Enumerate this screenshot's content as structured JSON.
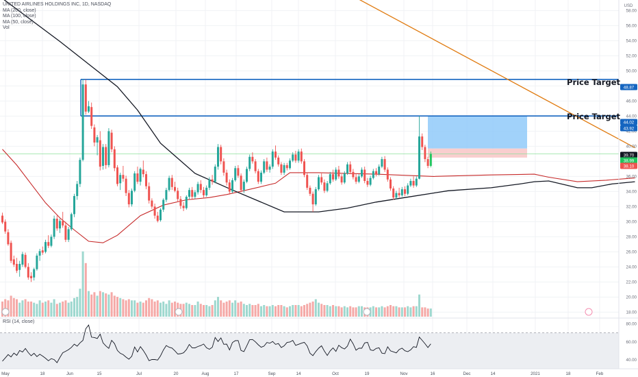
{
  "header": {
    "symbol": "UNITED AIRLINES HOLDINGS INC, 1D, NASDAQ",
    "indicators": [
      "MA (200, close)",
      "MA (100, close)",
      "MA (50, close)",
      "Vol"
    ],
    "rsi_label": "RSI (14, close)"
  },
  "annotations": [
    {
      "text": "Price Target",
      "level": 48.87
    },
    {
      "text": "Price Target",
      "level": 44.02
    }
  ],
  "colors": {
    "up": "#26a69a",
    "down": "#ef5350",
    "up_bright": "#22c55e",
    "ma200": "#e07b10",
    "ma100": "#c62828",
    "ma50": "#131722",
    "target_line": "#1565c0",
    "zone_profit": "#90caf9",
    "zone_loss": "#f8c9c9",
    "rsi": "#131722",
    "rsi_band": "#eceef2"
  },
  "chart_data": {
    "type": "candlestick",
    "currency": "USD",
    "y_ticks": [
      58.0,
      56.0,
      54.0,
      52.0,
      50.0,
      48.0,
      46.0,
      44.0,
      42.0,
      40.0,
      38.0,
      36.0,
      34.0,
      32.0,
      30.0,
      28.0,
      26.0,
      24.0,
      22.0,
      20.0,
      18.0
    ],
    "y_tick_labels": [
      "58.00",
      "56.00",
      "54.00",
      "52.00",
      "50.00",
      "48.00",
      "46.00",
      "44.00",
      "42.00",
      "40.00",
      "38.00",
      "36.00",
      "34.00",
      "32.00",
      "30.00",
      "28.00",
      "26.00",
      "24.00",
      "22.00",
      "20.00",
      "18.00"
    ],
    "ylim": [
      17.4,
      59.4
    ],
    "x_tick_labels": [
      "May",
      "18",
      "Jun",
      "15",
      "Jul",
      "20",
      "Aug",
      "17",
      "Sep",
      "14",
      "Oct",
      "19",
      "Nov",
      "16",
      "Dec",
      "14",
      "2021",
      "18",
      "Feb"
    ],
    "price_badges": [
      {
        "label": "48.87",
        "value": 48.87,
        "style": "blue"
      },
      {
        "label": "44.02",
        "value": 44.02,
        "style": "blue"
      },
      {
        "label": "43.92",
        "value": 43.92,
        "style": "blue"
      },
      {
        "label": "39.70",
        "value": 39.7,
        "style": "dark"
      },
      {
        "label": "38.99",
        "value": 38.99,
        "style": "green"
      },
      {
        "label": "38.10",
        "value": 38.1,
        "style": "red"
      }
    ],
    "position_zone": {
      "entry": 39.7,
      "target": 44.02,
      "stop": 38.5
    },
    "current_price": 38.99,
    "ohlc": [
      [
        30.8,
        31.2,
        29.7,
        29.9
      ],
      [
        30.0,
        30.3,
        28.4,
        28.7
      ],
      [
        28.6,
        29.0,
        26.8,
        27.0
      ],
      [
        27.2,
        27.5,
        24.5,
        24.8
      ],
      [
        25.0,
        25.5,
        24.0,
        24.3
      ],
      [
        24.4,
        25.2,
        23.2,
        23.5
      ],
      [
        23.6,
        24.8,
        22.7,
        24.4
      ],
      [
        24.3,
        26.0,
        24.0,
        25.7
      ],
      [
        25.6,
        25.9,
        23.8,
        24.0
      ],
      [
        24.0,
        24.5,
        22.3,
        22.6
      ],
      [
        22.8,
        23.3,
        22.0,
        22.5
      ],
      [
        22.6,
        23.9,
        22.2,
        23.7
      ],
      [
        23.7,
        25.8,
        23.5,
        25.5
      ],
      [
        25.5,
        26.4,
        24.8,
        26.1
      ],
      [
        26.2,
        26.7,
        25.6,
        25.9
      ],
      [
        26.0,
        27.6,
        25.8,
        27.3
      ],
      [
        27.3,
        28.2,
        26.5,
        26.8
      ],
      [
        26.8,
        28.3,
        26.6,
        28.0
      ],
      [
        28.0,
        30.8,
        27.7,
        30.4
      ],
      [
        30.4,
        30.8,
        28.8,
        29.1
      ],
      [
        29.1,
        30.4,
        28.5,
        30.1
      ],
      [
        30.1,
        31.3,
        29.2,
        29.5
      ],
      [
        29.5,
        30.0,
        27.3,
        27.6
      ],
      [
        27.6,
        29.3,
        27.3,
        29.0
      ],
      [
        29.0,
        31.2,
        28.8,
        31.0
      ],
      [
        31.0,
        33.7,
        30.6,
        33.4
      ],
      [
        33.4,
        35.4,
        32.9,
        35.0
      ],
      [
        35.0,
        38.5,
        34.6,
        38.2
      ],
      [
        38.2,
        48.9,
        38.0,
        48.2
      ],
      [
        48.2,
        48.87,
        44.2,
        44.6
      ],
      [
        44.6,
        46.0,
        44.4,
        45.3
      ],
      [
        45.2,
        45.8,
        42.3,
        42.7
      ],
      [
        42.5,
        42.9,
        40.0,
        40.5
      ],
      [
        40.5,
        41.5,
        38.8,
        41.2
      ],
      [
        40.8,
        42.0,
        36.8,
        37.3
      ],
      [
        37.4,
        40.3,
        36.9,
        39.9
      ],
      [
        39.9,
        40.3,
        37.0,
        37.5
      ],
      [
        37.5,
        42.4,
        37.2,
        42.0
      ],
      [
        41.8,
        42.2,
        39.2,
        39.6
      ],
      [
        39.6,
        40.0,
        36.7,
        37.1
      ],
      [
        37.2,
        37.5,
        34.7,
        35.0
      ],
      [
        35.1,
        36.5,
        34.2,
        36.2
      ],
      [
        36.2,
        37.4,
        35.3,
        35.7
      ],
      [
        35.7,
        36.1,
        33.4,
        33.8
      ],
      [
        33.8,
        34.2,
        31.9,
        32.3
      ],
      [
        32.3,
        34.4,
        32.0,
        34.1
      ],
      [
        34.1,
        36.7,
        33.9,
        36.4
      ],
      [
        36.4,
        37.3,
        35.0,
        35.3
      ],
      [
        35.3,
        37.2,
        34.8,
        37.0
      ],
      [
        36.9,
        38.1,
        35.9,
        36.3
      ],
      [
        36.3,
        36.7,
        34.3,
        34.7
      ],
      [
        34.7,
        35.2,
        32.4,
        32.8
      ],
      [
        32.8,
        33.1,
        31.7,
        32.0
      ],
      [
        32.0,
        32.4,
        30.4,
        30.8
      ],
      [
        30.8,
        31.3,
        29.9,
        30.1
      ],
      [
        30.2,
        31.8,
        30.0,
        31.6
      ],
      [
        31.6,
        33.1,
        31.3,
        32.9
      ],
      [
        32.9,
        34.5,
        32.6,
        34.2
      ],
      [
        34.2,
        36.1,
        34.0,
        35.8
      ],
      [
        35.8,
        36.2,
        34.2,
        34.6
      ],
      [
        34.6,
        35.3,
        33.9,
        34.1
      ],
      [
        34.1,
        34.5,
        32.6,
        33.0
      ],
      [
        33.0,
        33.4,
        31.7,
        32.1
      ],
      [
        32.1,
        32.6,
        31.4,
        31.8
      ],
      [
        31.8,
        33.5,
        31.6,
        33.3
      ],
      [
        33.3,
        34.5,
        33.0,
        34.2
      ],
      [
        34.2,
        34.6,
        32.9,
        33.3
      ],
      [
        33.3,
        34.2,
        33.0,
        33.9
      ],
      [
        33.9,
        35.3,
        33.6,
        35.0
      ],
      [
        35.0,
        35.5,
        33.8,
        34.2
      ],
      [
        34.2,
        34.6,
        33.2,
        33.5
      ],
      [
        33.5,
        34.8,
        33.3,
        34.5
      ],
      [
        34.5,
        35.9,
        34.2,
        35.6
      ],
      [
        35.6,
        36.2,
        34.9,
        35.3
      ],
      [
        35.3,
        37.6,
        35.1,
        37.3
      ],
      [
        37.3,
        40.3,
        36.9,
        39.9
      ],
      [
        39.9,
        40.2,
        37.6,
        38.0
      ],
      [
        38.0,
        38.4,
        36.1,
        36.5
      ],
      [
        36.5,
        36.9,
        34.8,
        35.2
      ],
      [
        35.2,
        35.6,
        33.6,
        34.0
      ],
      [
        34.0,
        35.8,
        33.8,
        35.5
      ],
      [
        35.5,
        37.4,
        35.3,
        37.1
      ],
      [
        37.1,
        37.5,
        35.8,
        36.1
      ],
      [
        36.1,
        36.4,
        33.9,
        34.2
      ],
      [
        34.2,
        35.6,
        33.8,
        35.3
      ],
      [
        35.3,
        37.3,
        35.1,
        37.0
      ],
      [
        37.0,
        38.9,
        36.7,
        38.6
      ],
      [
        38.6,
        39.2,
        37.7,
        38.0
      ],
      [
        38.0,
        38.3,
        36.4,
        36.7
      ],
      [
        36.7,
        37.0,
        35.0,
        35.3
      ],
      [
        35.3,
        36.8,
        35.0,
        36.5
      ],
      [
        36.5,
        38.3,
        36.3,
        38.0
      ],
      [
        38.0,
        38.5,
        36.6,
        36.9
      ],
      [
        36.9,
        37.6,
        36.5,
        37.3
      ],
      [
        37.3,
        39.6,
        37.0,
        39.3
      ],
      [
        39.3,
        40.1,
        38.2,
        38.5
      ],
      [
        38.5,
        38.8,
        37.3,
        37.6
      ],
      [
        37.6,
        37.9,
        36.2,
        36.5
      ],
      [
        36.5,
        37.8,
        36.2,
        37.5
      ],
      [
        37.5,
        37.8,
        36.8,
        37.1
      ],
      [
        37.1,
        38.4,
        36.9,
        38.1
      ],
      [
        38.1,
        39.2,
        37.9,
        38.9
      ],
      [
        38.9,
        39.4,
        37.8,
        38.1
      ],
      [
        38.1,
        39.6,
        37.8,
        39.3
      ],
      [
        39.3,
        39.7,
        37.7,
        38.0
      ],
      [
        38.0,
        38.3,
        35.9,
        36.2
      ],
      [
        36.2,
        36.5,
        34.2,
        34.5
      ],
      [
        34.5,
        34.8,
        33.4,
        33.7
      ],
      [
        33.7,
        34.0,
        31.3,
        32.3
      ],
      [
        32.3,
        34.6,
        32.1,
        34.3
      ],
      [
        34.3,
        36.2,
        34.1,
        35.9
      ],
      [
        35.9,
        36.4,
        34.9,
        35.2
      ],
      [
        35.2,
        35.6,
        33.8,
        34.1
      ],
      [
        34.1,
        35.4,
        33.9,
        35.1
      ],
      [
        35.1,
        36.6,
        34.9,
        36.3
      ],
      [
        36.3,
        36.9,
        35.3,
        35.6
      ],
      [
        35.6,
        37.2,
        35.4,
        36.9
      ],
      [
        36.9,
        37.4,
        35.7,
        36.0
      ],
      [
        36.0,
        36.3,
        34.9,
        35.2
      ],
      [
        35.2,
        36.7,
        35.0,
        36.4
      ],
      [
        36.4,
        37.9,
        36.2,
        37.6
      ],
      [
        37.6,
        38.0,
        36.3,
        36.6
      ],
      [
        36.6,
        37.0,
        35.6,
        35.9
      ],
      [
        35.9,
        36.3,
        35.0,
        35.3
      ],
      [
        35.3,
        36.3,
        35.1,
        36.0
      ],
      [
        36.0,
        37.2,
        35.8,
        36.9
      ],
      [
        36.9,
        37.3,
        35.1,
        35.4
      ],
      [
        35.4,
        35.8,
        34.6,
        34.9
      ],
      [
        34.9,
        36.1,
        34.7,
        35.8
      ],
      [
        35.8,
        37.0,
        35.6,
        36.7
      ],
      [
        36.7,
        37.1,
        36.0,
        36.3
      ],
      [
        36.3,
        37.6,
        36.1,
        37.3
      ],
      [
        37.3,
        38.6,
        37.1,
        38.3
      ],
      [
        38.3,
        38.7,
        36.6,
        36.9
      ],
      [
        36.9,
        37.2,
        35.3,
        35.6
      ],
      [
        35.6,
        35.9,
        34.1,
        34.4
      ],
      [
        34.4,
        34.7,
        32.9,
        33.2
      ],
      [
        33.2,
        34.1,
        33.0,
        33.8
      ],
      [
        33.8,
        34.5,
        33.2,
        33.5
      ],
      [
        33.5,
        34.6,
        33.3,
        34.3
      ],
      [
        34.3,
        34.7,
        33.4,
        33.7
      ],
      [
        33.7,
        35.1,
        33.5,
        34.8
      ],
      [
        34.8,
        35.7,
        34.6,
        35.4
      ],
      [
        35.4,
        36.0,
        34.5,
        34.8
      ],
      [
        34.8,
        36.0,
        34.6,
        35.7
      ],
      [
        35.7,
        44.0,
        35.6,
        41.3
      ],
      [
        41.3,
        41.7,
        39.5,
        39.9
      ],
      [
        39.9,
        40.2,
        37.9,
        38.3
      ],
      [
        38.3,
        38.6,
        37.1,
        37.4
      ],
      [
        37.4,
        39.3,
        37.2,
        38.99
      ]
    ],
    "volume": [
      13.0,
      15.0,
      14.0,
      18.0,
      16.0,
      15.0,
      12.0,
      14.0,
      15.0,
      13.0,
      13.0,
      12.0,
      11.0,
      14.0,
      12.0,
      13.0,
      14.0,
      12.0,
      15.0,
      11.0,
      12.0,
      13.0,
      14.0,
      12.0,
      13.0,
      16.0,
      17.0,
      24.0,
      56.0,
      46.0,
      22.0,
      19.0,
      21.0,
      18.0,
      22.0,
      21.0,
      20.0,
      19.0,
      21.0,
      18.0,
      17.0,
      16.0,
      15.0,
      14.0,
      15.0,
      14.0,
      14.0,
      12.0,
      13.0,
      12.0,
      14.0,
      16.0,
      15.0,
      13.0,
      14.0,
      12.0,
      13.0,
      11.0,
      14.0,
      12.0,
      13.0,
      12.0,
      11.0,
      11.0,
      12.0,
      11.0,
      10.0,
      10.0,
      13.0,
      11.0,
      10.0,
      10.0,
      9.0,
      10.0,
      14.0,
      17.0,
      14.0,
      12.0,
      13.0,
      14.0,
      12.0,
      14.0,
      12.0,
      13.0,
      11.0,
      10.0,
      11.0,
      10.0,
      10.0,
      11.0,
      9.0,
      10.0,
      9.0,
      9.0,
      10.0,
      9.0,
      10.0,
      10.0,
      9.0,
      8.0,
      9.0,
      10.0,
      10.0,
      10.0,
      9.0,
      10.0,
      11.0,
      12.0,
      13.0,
      15.0,
      12.0,
      11.0,
      10.0,
      10.0,
      9.0,
      10.0,
      9.0,
      9.0,
      8.0,
      9.0,
      8.0,
      9.0,
      8.0,
      8.0,
      9.0,
      9.0,
      8.0,
      8.0,
      8.0,
      9.0,
      8.0,
      8.0,
      9.0,
      8.0,
      9.0,
      10.0,
      9.0,
      9.0,
      8.0,
      8.0,
      8.0,
      9.0,
      8.0,
      9.0,
      9.0,
      19.0,
      8.0,
      8.0,
      7.0,
      7.0
    ],
    "ma50": [
      [
        0,
        59.6
      ],
      [
        20,
        53.9
      ],
      [
        40,
        47.9
      ],
      [
        47,
        44.8
      ],
      [
        55,
        40.4
      ],
      [
        67,
        36.4
      ],
      [
        80,
        34.2
      ],
      [
        98,
        31.3
      ],
      [
        110,
        31.3
      ],
      [
        120,
        31.8
      ],
      [
        130,
        32.6
      ],
      [
        140,
        33.2
      ],
      [
        150,
        33.8
      ],
      [
        155,
        34.1
      ],
      [
        170,
        34.5
      ],
      [
        180,
        35.0
      ],
      [
        185,
        35.3
      ],
      [
        190,
        35.4
      ],
      [
        200,
        34.5
      ],
      [
        205,
        34.5
      ],
      [
        212,
        35.0
      ],
      [
        220,
        35.3
      ]
    ],
    "ma100": [
      [
        0,
        39.6
      ],
      [
        5,
        37.5
      ],
      [
        10,
        35.0
      ],
      [
        15,
        32.5
      ],
      [
        20,
        30.5
      ],
      [
        25,
        28.9
      ],
      [
        30,
        27.4
      ],
      [
        35,
        27.2
      ],
      [
        40,
        28.2
      ],
      [
        48,
        30.8
      ],
      [
        56,
        32.2
      ],
      [
        64,
        32.9
      ],
      [
        72,
        33.2
      ],
      [
        78,
        33.6
      ],
      [
        85,
        34.2
      ],
      [
        95,
        35.1
      ],
      [
        100,
        36.5
      ],
      [
        110,
        36.5
      ],
      [
        130,
        36.3
      ],
      [
        150,
        36.0
      ],
      [
        170,
        36.2
      ],
      [
        185,
        36.3
      ],
      [
        190,
        35.9
      ],
      [
        200,
        35.3
      ],
      [
        210,
        35.5
      ],
      [
        220,
        35.8
      ]
    ],
    "ma200": [
      [
        63,
        72.0
      ],
      [
        220,
        39.8
      ]
    ],
    "rsi_ticks": [
      80.0,
      60.0,
      40.0
    ],
    "rsi_tick_labels": [
      "80.00",
      "60.00",
      "40.00"
    ],
    "rsi_band": [
      70,
      30
    ],
    "rsi_ylim": [
      30,
      85
    ],
    "rsi": [
      38.5,
      42.1,
      45.8,
      43.2,
      47.5,
      45.0,
      50.3,
      48.7,
      52.6,
      48.0,
      44.5,
      47.3,
      43.6,
      46.2,
      44.1,
      41.8,
      38.9,
      41.3,
      40.2,
      36.8,
      42.6,
      47.9,
      49.5,
      51.3,
      53.8,
      57.4,
      55.2,
      58.9,
      61.6,
      74.6,
      78.7,
      65.2,
      64.8,
      63.8,
      68.6,
      58.9,
      55.4,
      52.8,
      61.7,
      58.0,
      50.4,
      47.3,
      45.7,
      43.0,
      40.7,
      43.9,
      54.3,
      48.7,
      54.7,
      50.4,
      45.3,
      39.0,
      40.4,
      40.3,
      39.7,
      44.4,
      50.9,
      55.9,
      54.0,
      53.1,
      50.0,
      46.4,
      46.8,
      47.8,
      51.3,
      57.1,
      53.4,
      53.3,
      54.8,
      55.9,
      57.6,
      53.4,
      51.8,
      54.0,
      64.8,
      60.4,
      64.4,
      57.3,
      57.5,
      51.0,
      59.2,
      61.3,
      61.5,
      50.4,
      49.2,
      55.5,
      62.5,
      62.6,
      60.0,
      56.7,
      54.0,
      55.3,
      59.3,
      58.5,
      60.4,
      57.2,
      58.1,
      53.7,
      55.6,
      59.3,
      59.8,
      61.6,
      56.1,
      57.3,
      58.5,
      59.5,
      55.5,
      47.3,
      44.7,
      49.2,
      52.9,
      55.6,
      49.6,
      44.8,
      49.9,
      53.3,
      49.3,
      56.2,
      53.5,
      52.1,
      55.2,
      63.1,
      57.8,
      50.7,
      53.0,
      52.9,
      58.8,
      59.5,
      51.0,
      50.3,
      52.7,
      53.4,
      47.4,
      46.9,
      54.5,
      49.9,
      48.9,
      47.7,
      51.4,
      53.0,
      50.1,
      49.1,
      51.1,
      54.7,
      53.8,
      65.4,
      61.7,
      57.9,
      53.7,
      57.7
    ]
  }
}
